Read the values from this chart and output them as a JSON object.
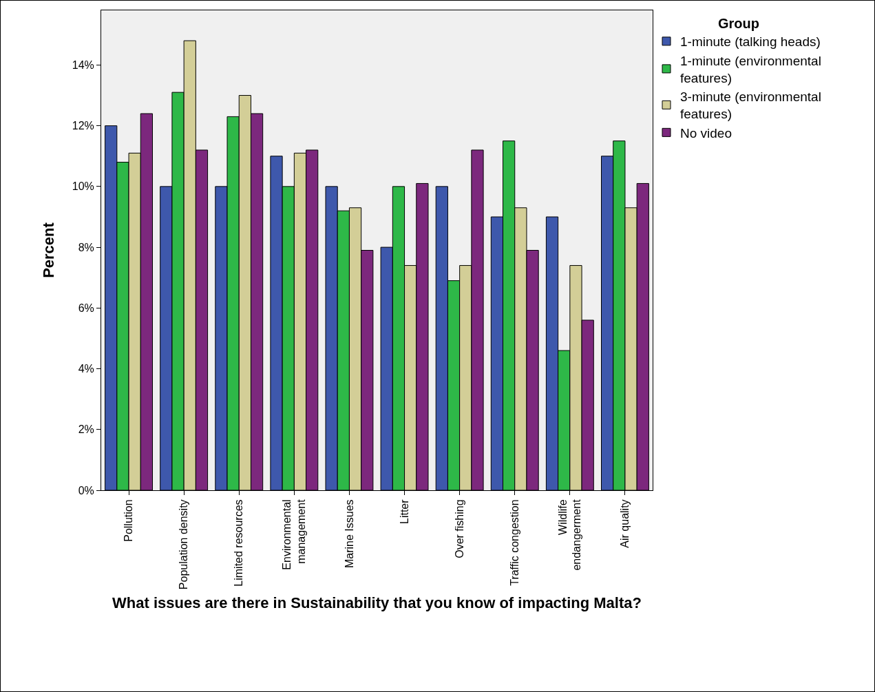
{
  "chart_data": {
    "type": "bar",
    "xlabel": "What issues are there in Sustainability that you know of impacting Malta?",
    "ylabel": "Percent",
    "legend_title": "Group",
    "categories": [
      "Pollution",
      "Population density",
      "Limited resources",
      "Environmental\nmanagement",
      "Marine Issues",
      "Litter",
      "Over fishing",
      "Traffic congestion",
      "Wildlife\nendangerment",
      "Air quality"
    ],
    "series": [
      {
        "name": "1-minute (talking heads)",
        "color": "#3e58ac",
        "values": [
          12,
          10,
          10,
          11,
          10,
          8,
          10,
          9,
          9,
          11
        ]
      },
      {
        "name": "1-minute (environmental features)",
        "color": "#2eb848",
        "values": [
          10.8,
          13.1,
          12.3,
          10,
          9.2,
          10,
          6.9,
          11.5,
          4.6,
          11.5
        ]
      },
      {
        "name": "3-minute (environmental features)",
        "color": "#d3ce97",
        "values": [
          11.1,
          14.8,
          13,
          11.1,
          9.3,
          7.4,
          7.4,
          9.3,
          7.4,
          9.3
        ]
      },
      {
        "name": "No video",
        "color": "#7c287d",
        "values": [
          12.4,
          11.2,
          12.4,
          11.2,
          7.9,
          10.1,
          11.2,
          7.9,
          5.6,
          10.1
        ]
      }
    ],
    "ylim": [
      0,
      15.8
    ],
    "yticks": [
      {
        "value": 0,
        "label": "0%"
      },
      {
        "value": 2,
        "label": "2%"
      },
      {
        "value": 4,
        "label": "4%"
      },
      {
        "value": 6,
        "label": "6%"
      },
      {
        "value": 8,
        "label": "8%"
      },
      {
        "value": 10,
        "label": "10%"
      },
      {
        "value": 12,
        "label": "12%"
      },
      {
        "value": 14,
        "label": "14%"
      }
    ],
    "grid": false,
    "legend": "top right"
  }
}
